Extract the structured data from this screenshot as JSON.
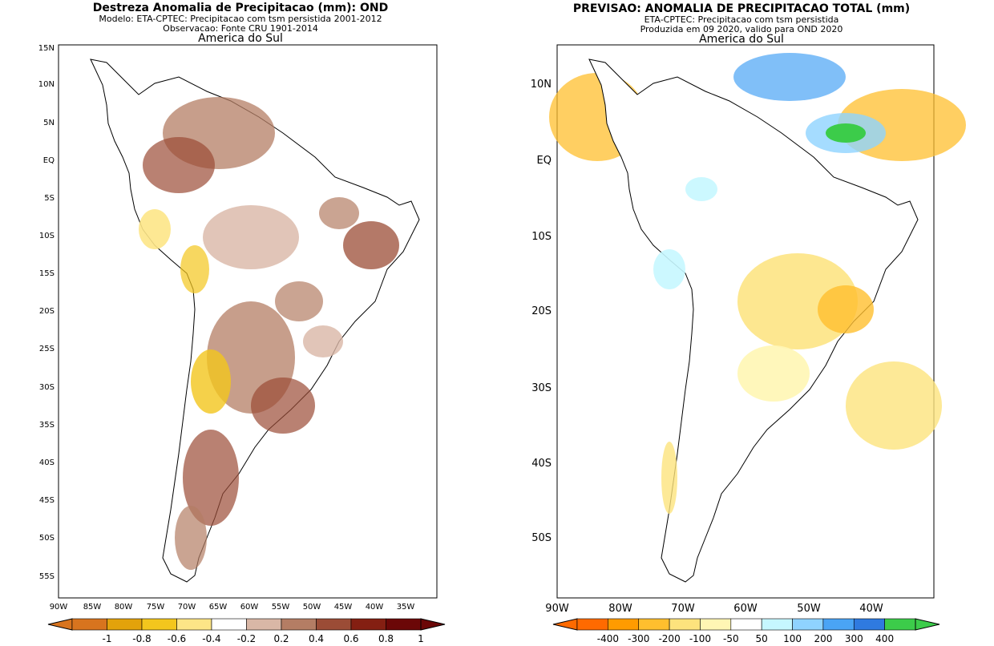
{
  "left_panel": {
    "title": "Destreza Anomalia de Precipitacao (mm): OND",
    "subtitle_model": "Modelo: ETA-CPTEC: Precipitacao com tsm persistida 2001-2012",
    "subtitle_obs": "Observacao: Fonte CRU 1901-2014",
    "region": "America do Sul",
    "lat_ticks": [
      "15N",
      "10N",
      "5N",
      "EQ",
      "5S",
      "10S",
      "15S",
      "20S",
      "25S",
      "30S",
      "35S",
      "40S",
      "45S",
      "50S",
      "55S"
    ],
    "lon_ticks": [
      "90W",
      "85W",
      "80W",
      "75W",
      "70W",
      "65W",
      "60W",
      "55W",
      "50W",
      "45W",
      "40W",
      "35W"
    ],
    "colorbar": {
      "labels": [
        "-1",
        "-0.8",
        "-0.6",
        "-0.4",
        "-0.2",
        "0.2",
        "0.4",
        "0.6",
        "0.8",
        "1"
      ],
      "colors": [
        "#d8741e",
        "#e3a20b",
        "#f3c61d",
        "#fde587",
        "#ffffff",
        "#d9b7a6",
        "#b47d64",
        "#9b4c36",
        "#841f12",
        "#6b0707"
      ]
    }
  },
  "right_panel": {
    "title": "PREVISAO: ANOMALIA DE PRECIPITACAO TOTAL (mm)",
    "subtitle_model": "ETA-CPTEC: Precipitacao com tsm persistida",
    "subtitle_issue": "Produzida em 09 2020, valido para OND 2020",
    "region": "America do Sul",
    "lat_ticks": [
      "10N",
      "EQ",
      "10S",
      "20S",
      "30S",
      "40S",
      "50S"
    ],
    "lon_ticks": [
      "90W",
      "80W",
      "70W",
      "60W",
      "50W",
      "40W"
    ],
    "colorbar": {
      "labels": [
        "-400",
        "-300",
        "-200",
        "-100",
        "-50",
        "50",
        "100",
        "200",
        "300",
        "400"
      ],
      "colors": [
        "#ff6a00",
        "#ff9b00",
        "#ffbf2e",
        "#fde37d",
        "#fff6b4",
        "#ffffff",
        "#c6f7ff",
        "#8fd3ff",
        "#4aa4f5",
        "#2f7ae0",
        "#3ccc4a"
      ]
    }
  }
}
